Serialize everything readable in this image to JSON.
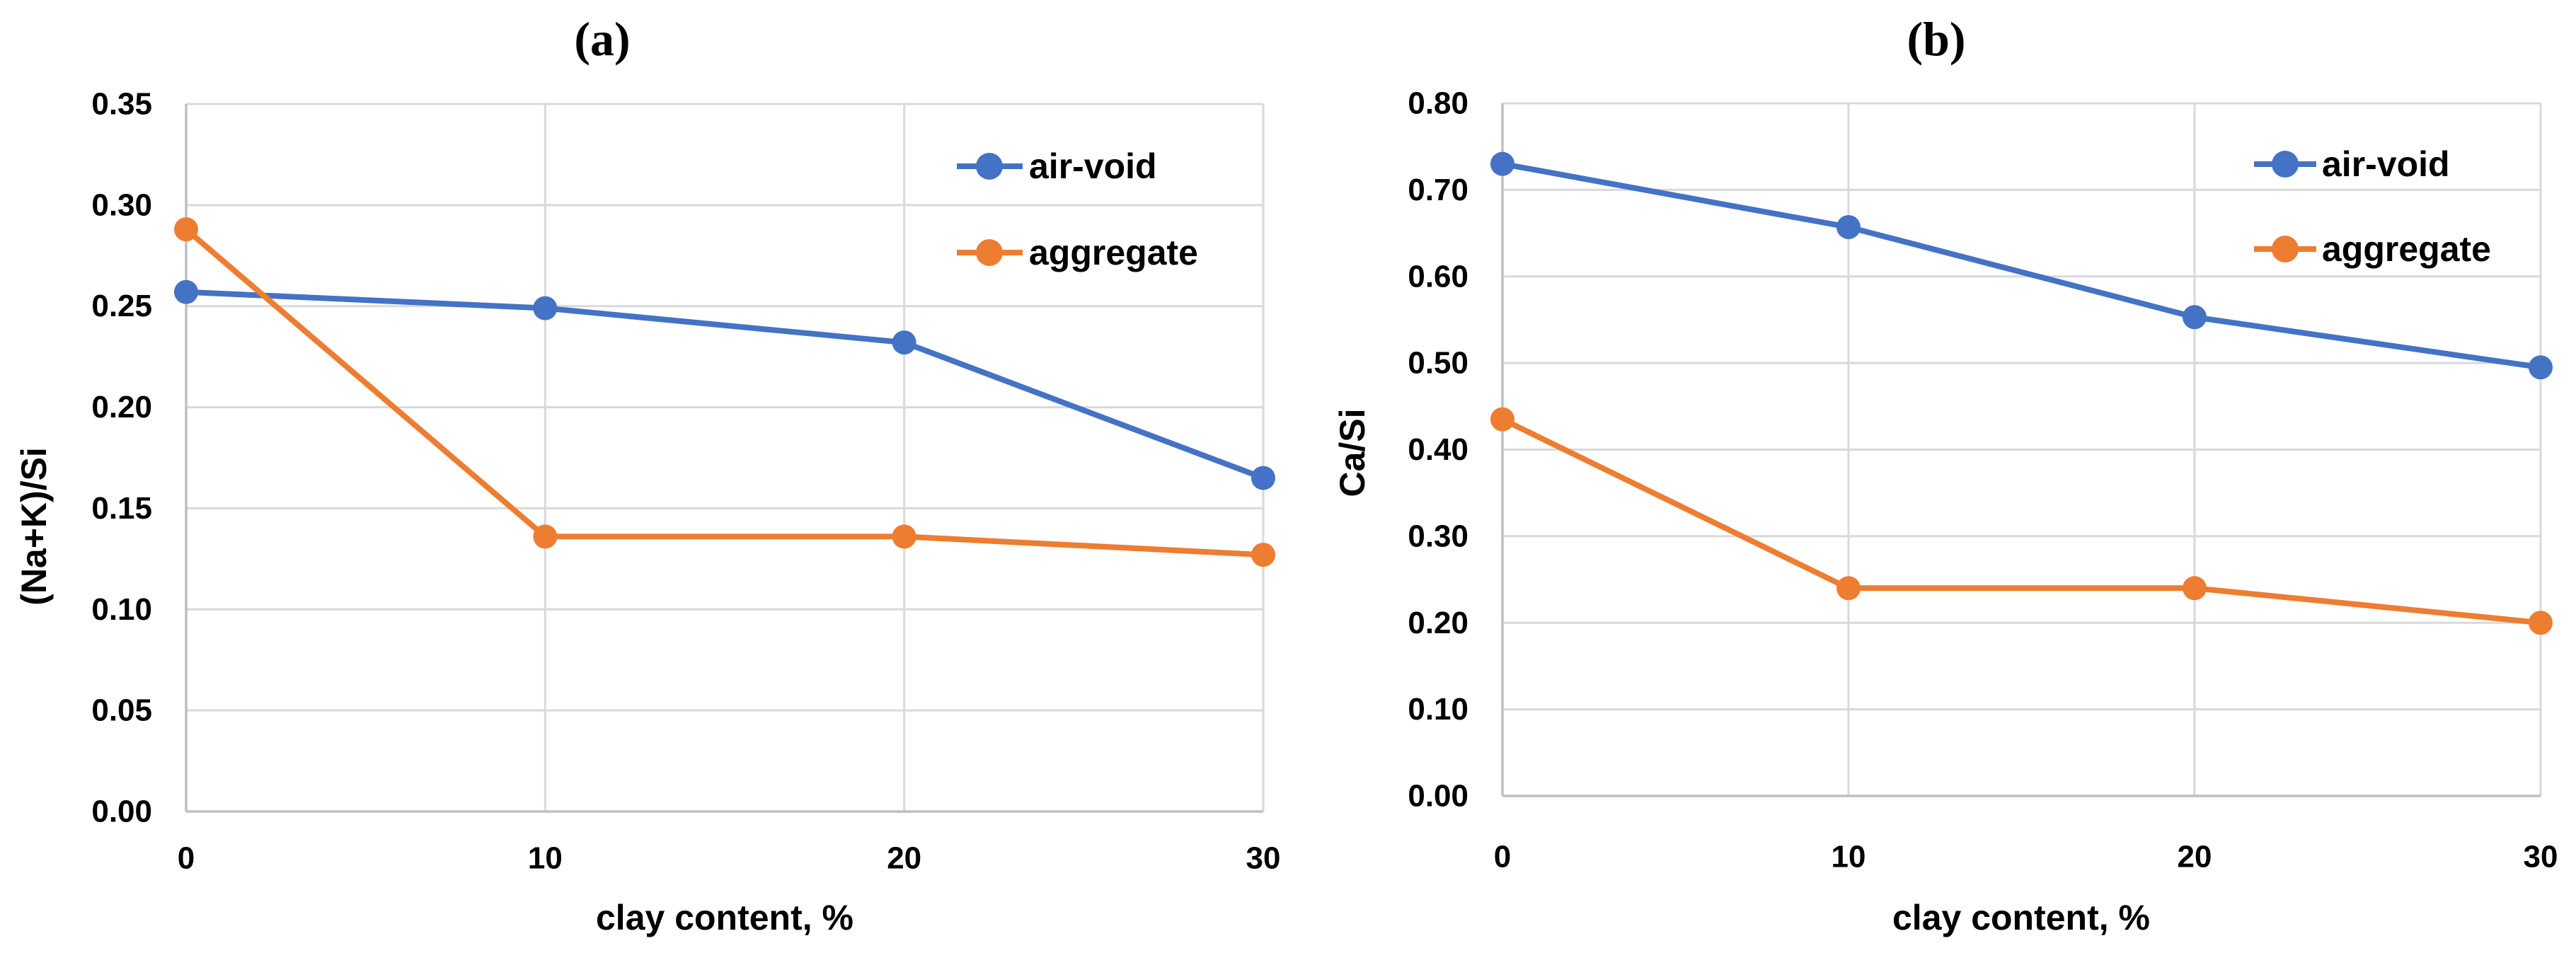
{
  "figure": {
    "background": "#ffffff",
    "gridline_color": "#D9D9D9",
    "axis_color": "#BFBFBF",
    "text_color": "#000000",
    "accent_blue": "#4472C4",
    "accent_orange": "#ED7D31"
  },
  "chart_data": [
    {
      "id": "a",
      "type": "line",
      "title": "(a)",
      "xlabel": "clay content, %",
      "ylabel": "(Na+K)/Si",
      "x": [
        0,
        10,
        20,
        30
      ],
      "xticks": [
        "0",
        "10",
        "20",
        "30"
      ],
      "yticks": [
        "0.00",
        "0.05",
        "0.10",
        "0.15",
        "0.20",
        "0.25",
        "0.30",
        "0.35"
      ],
      "xlim": [
        0,
        30
      ],
      "ylim": [
        0,
        0.35
      ],
      "grid": true,
      "legend_position": "top-right",
      "series": [
        {
          "name": "air-void",
          "color": "#4472C4",
          "values": [
            0.257,
            0.249,
            0.232,
            0.165
          ]
        },
        {
          "name": "aggregate",
          "color": "#ED7D31",
          "values": [
            0.288,
            0.136,
            0.136,
            0.127
          ]
        }
      ]
    },
    {
      "id": "b",
      "type": "line",
      "title": "(b)",
      "xlabel": "clay content, %",
      "ylabel": "Ca/Si",
      "x": [
        0,
        10,
        20,
        30
      ],
      "xticks": [
        "0",
        "10",
        "20",
        "30"
      ],
      "yticks": [
        "0.00",
        "0.10",
        "0.20",
        "0.30",
        "0.40",
        "0.50",
        "0.60",
        "0.70",
        "0.80"
      ],
      "xlim": [
        0,
        30
      ],
      "ylim": [
        0,
        0.8
      ],
      "grid": true,
      "legend_position": "top-right",
      "series": [
        {
          "name": "air-void",
          "color": "#4472C4",
          "values": [
            0.73,
            0.657,
            0.553,
            0.495
          ]
        },
        {
          "name": "aggregate",
          "color": "#ED7D31",
          "values": [
            0.435,
            0.24,
            0.24,
            0.2
          ]
        }
      ]
    }
  ]
}
